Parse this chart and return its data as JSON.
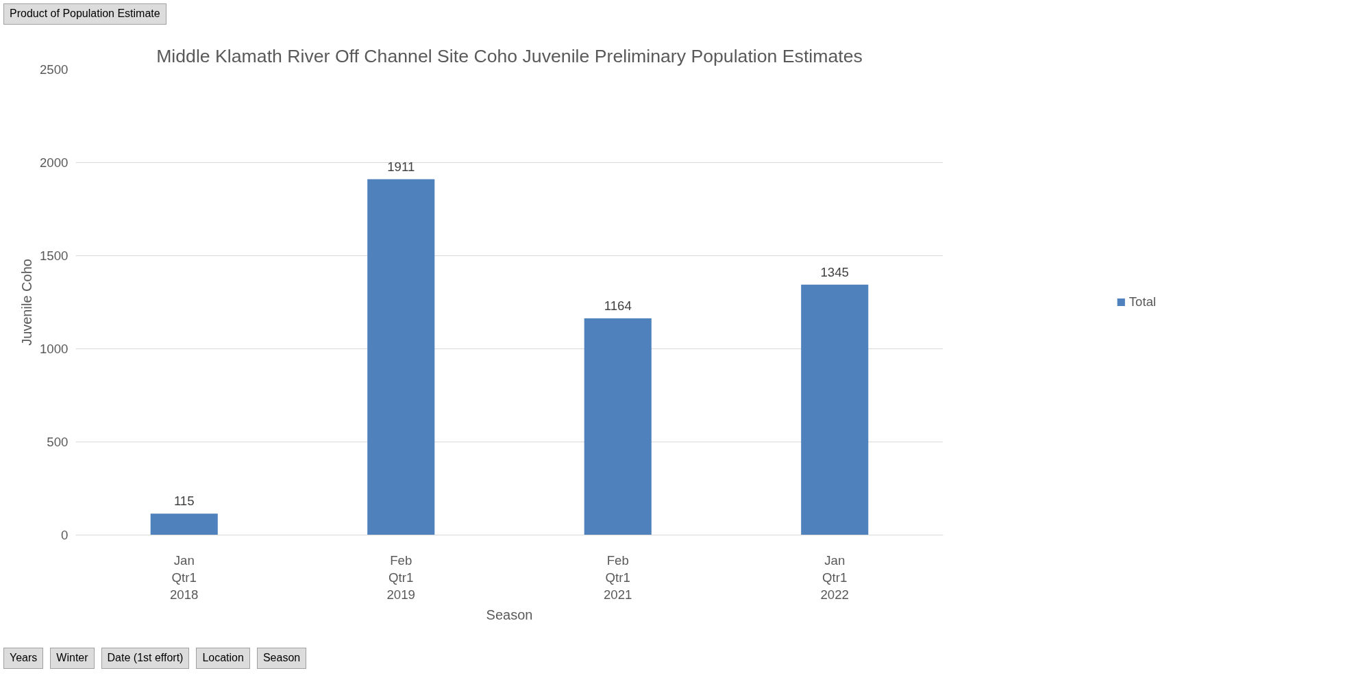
{
  "chart_data": {
    "type": "bar",
    "title": "Middle Klamath River Off Channel Site Coho Juvenile Preliminary Population Estimates",
    "xlabel": "Season",
    "ylabel": "Juvenile Coho",
    "categories": [
      "Jan\nQtr1\n2018",
      "Feb\nQtr1\n2019",
      "Feb\nQtr1\n2021",
      "Jan\nQtr1\n2022"
    ],
    "series": [
      {
        "name": "Total",
        "color": "#4f81bd",
        "values": [
          115,
          1911,
          1164,
          1345
        ]
      }
    ],
    "ylim": [
      0,
      2500
    ],
    "yticks": [
      0,
      500,
      1000,
      1500,
      2000,
      2500
    ],
    "grid": "y",
    "legend": "right",
    "data_labels": true,
    "annotations": [
      "Product of Population Estimate",
      "Years",
      "Winter",
      "Date (1st effort)",
      "Location",
      "Season"
    ]
  }
}
